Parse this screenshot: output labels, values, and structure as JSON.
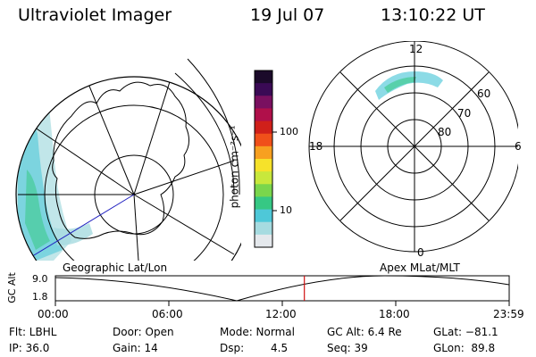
{
  "header": {
    "title": "Ultraviolet Imager",
    "date": "19 Jul 07",
    "time": "13:10:22 UT"
  },
  "colorbar": {
    "label": "photon cm⁻²s⁻¹",
    "ticks": [
      "100",
      "10"
    ],
    "colors": [
      "#1b0a2a",
      "#3a0a55",
      "#7a1060",
      "#b0104a",
      "#d0201a",
      "#f0501a",
      "#f7a020",
      "#f6e22a",
      "#c8e83c",
      "#7ad64c",
      "#36c884",
      "#4ec8d8",
      "#a6dbe0",
      "#e4e8ec"
    ]
  },
  "geo_map": {
    "caption": "Geographic Lat/Lon"
  },
  "polar_map": {
    "caption": "Apex MLat/MLT",
    "mlt_labels": {
      "top": "12",
      "left": "18",
      "right": "6",
      "bottom": "0"
    },
    "lat_labels": [
      "60",
      "70",
      "80"
    ]
  },
  "altitude_plot": {
    "ylabel": "GC Alt",
    "ymax_label": "9.0",
    "ymin_label": "1.8",
    "x_ticks": [
      "00:00",
      "06:00",
      "12:00",
      "18:00",
      "23:59"
    ],
    "current_time_fraction": 0.5486
  },
  "info": {
    "filter": "Flt: LBHL",
    "ip": "IP: 36.0",
    "door": "Door: Open",
    "gain": "Gain: 14",
    "mode": "Mode: Normal",
    "dsp_label": "Dsp:",
    "dsp_value": "4.5",
    "gc_alt": "GC Alt: 6.4 Re",
    "seq": "Seq: 39",
    "glat": "GLat: −81.1",
    "glon": "GLon:  89.8"
  }
}
